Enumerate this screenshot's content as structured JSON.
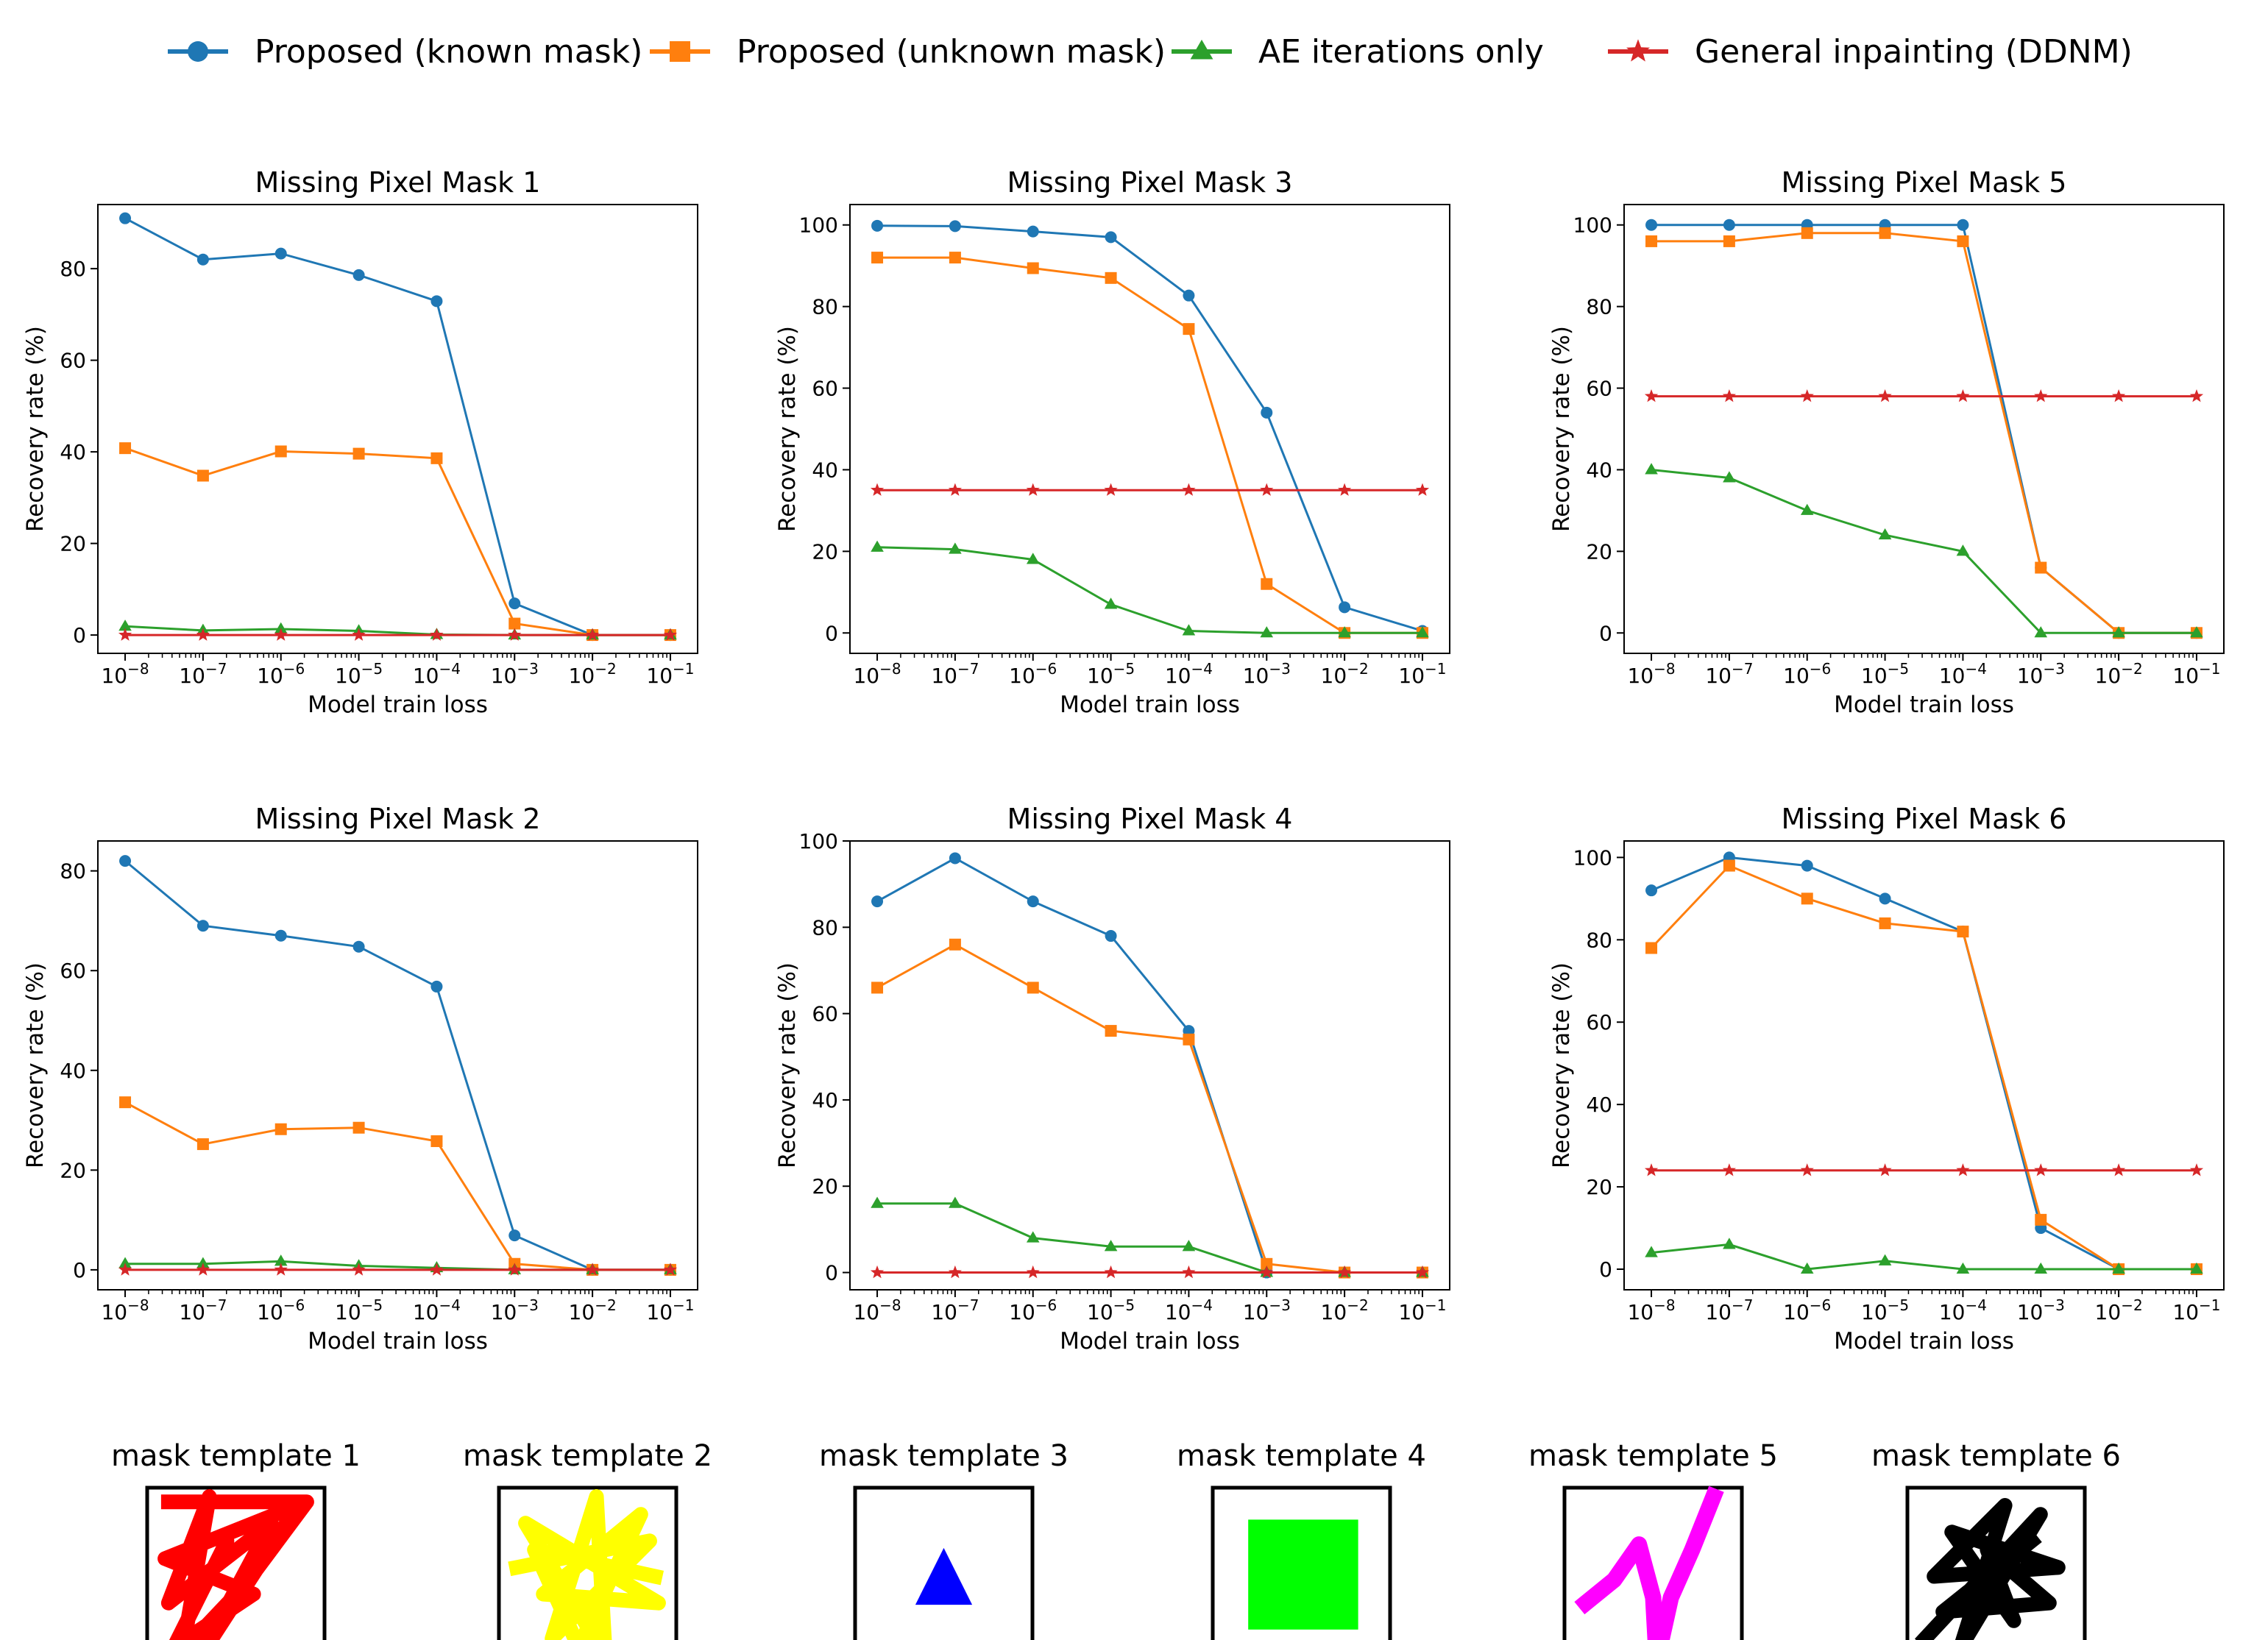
{
  "legend": {
    "placement": "top-center",
    "items": [
      {
        "label": "Proposed (known mask)",
        "color": "#1f77b4",
        "marker": "circle"
      },
      {
        "label": "Proposed (unknown mask)",
        "color": "#ff7f0e",
        "marker": "square"
      },
      {
        "label": "AE iterations only",
        "color": "#2ca02c",
        "marker": "triangle"
      },
      {
        "label": "General inpainting (DDNM)",
        "color": "#d62728",
        "marker": "star"
      }
    ]
  },
  "chart_data": [
    {
      "type": "line",
      "title": "Missing Pixel Mask 1",
      "xlabel": "Model train loss",
      "ylabel": "Recovery rate (%)",
      "x": [
        1e-08,
        1e-07,
        1e-06,
        1e-05,
        0.0001,
        0.001,
        0.01,
        0.1
      ],
      "xscale": "log",
      "ylim": [
        -4,
        94
      ],
      "yticks": [
        0,
        20,
        40,
        60,
        80
      ],
      "series": [
        {
          "name": "Proposed (known mask)",
          "values": [
            91,
            82,
            83.3,
            78.6,
            72.9,
            6.9,
            0,
            0
          ]
        },
        {
          "name": "Proposed (unknown mask)",
          "values": [
            40.8,
            34.8,
            40.1,
            39.6,
            38.6,
            2.5,
            0,
            0
          ]
        },
        {
          "name": "AE iterations only",
          "values": [
            1.9,
            1,
            1.3,
            0.9,
            0.1,
            0,
            0,
            0
          ]
        },
        {
          "name": "General inpainting (DDNM)",
          "values": [
            0,
            0,
            0,
            0,
            0,
            0,
            0,
            0
          ]
        }
      ]
    },
    {
      "type": "line",
      "title": "Missing Pixel Mask 3",
      "xlabel": "Model train loss",
      "ylabel": "Recovery rate (%)",
      "x": [
        1e-08,
        1e-07,
        1e-06,
        1e-05,
        0.0001,
        0.001,
        0.01,
        0.1
      ],
      "xscale": "log",
      "ylim": [
        -5,
        105
      ],
      "yticks": [
        0,
        20,
        40,
        60,
        80,
        100
      ],
      "series": [
        {
          "name": "Proposed (known mask)",
          "values": [
            99.8,
            99.7,
            98.4,
            97,
            82.7,
            54,
            6.3,
            0.5
          ]
        },
        {
          "name": "Proposed (unknown mask)",
          "values": [
            92,
            92,
            89.4,
            87,
            74.5,
            12,
            0,
            0
          ]
        },
        {
          "name": "AE iterations only",
          "values": [
            21,
            20.5,
            18,
            7,
            0.5,
            0,
            0,
            0
          ]
        },
        {
          "name": "General inpainting (DDNM)",
          "values": [
            35,
            35,
            35,
            35,
            35,
            35,
            35,
            35
          ]
        }
      ]
    },
    {
      "type": "line",
      "title": "Missing Pixel Mask 5",
      "xlabel": "Model train loss",
      "ylabel": "Recovery rate (%)",
      "x": [
        1e-08,
        1e-07,
        1e-06,
        1e-05,
        0.0001,
        0.001,
        0.01,
        0.1
      ],
      "xscale": "log",
      "ylim": [
        -5,
        105
      ],
      "yticks": [
        0,
        20,
        40,
        60,
        80,
        100
      ],
      "series": [
        {
          "name": "Proposed (known mask)",
          "values": [
            100,
            100,
            100,
            100,
            100,
            16,
            0,
            0
          ]
        },
        {
          "name": "Proposed (unknown mask)",
          "values": [
            96,
            96,
            98,
            98,
            96,
            16,
            0,
            0
          ]
        },
        {
          "name": "AE iterations only",
          "values": [
            40,
            38,
            30,
            24,
            20,
            0,
            0,
            0
          ]
        },
        {
          "name": "General inpainting (DDNM)",
          "values": [
            58,
            58,
            58,
            58,
            58,
            58,
            58,
            58
          ]
        }
      ]
    },
    {
      "type": "line",
      "title": "Missing Pixel Mask 2",
      "xlabel": "Model train loss",
      "ylabel": "Recovery rate (%)",
      "x": [
        1e-08,
        1e-07,
        1e-06,
        1e-05,
        0.0001,
        0.001,
        0.01,
        0.1
      ],
      "xscale": "log",
      "ylim": [
        -4,
        86
      ],
      "yticks": [
        0,
        20,
        40,
        60,
        80
      ],
      "series": [
        {
          "name": "Proposed (known mask)",
          "values": [
            82,
            69,
            67,
            64.8,
            56.8,
            6.9,
            0,
            0
          ]
        },
        {
          "name": "Proposed (unknown mask)",
          "values": [
            33.6,
            25.2,
            28.2,
            28.5,
            25.8,
            1.2,
            0,
            0
          ]
        },
        {
          "name": "AE iterations only",
          "values": [
            1.2,
            1.2,
            1.7,
            0.8,
            0.4,
            0,
            0,
            0
          ]
        },
        {
          "name": "General inpainting (DDNM)",
          "values": [
            0,
            0,
            0,
            0,
            0,
            0,
            0,
            0
          ]
        }
      ]
    },
    {
      "type": "line",
      "title": "Missing Pixel Mask 4",
      "xlabel": "Model train loss",
      "ylabel": "Recovery rate (%)",
      "x": [
        1e-08,
        1e-07,
        1e-06,
        1e-05,
        0.0001,
        0.001,
        0.01,
        0.1
      ],
      "xscale": "log",
      "ylim": [
        -4,
        100
      ],
      "yticks": [
        0,
        20,
        40,
        60,
        80,
        100
      ],
      "series": [
        {
          "name": "Proposed (known mask)",
          "values": [
            86,
            96,
            86,
            78,
            56,
            0,
            0,
            0
          ]
        },
        {
          "name": "Proposed (unknown mask)",
          "values": [
            66,
            76,
            66,
            56,
            54,
            2,
            0,
            0
          ]
        },
        {
          "name": "AE iterations only",
          "values": [
            16,
            16,
            8,
            6,
            6,
            0,
            0,
            0
          ]
        },
        {
          "name": "General inpainting (DDNM)",
          "values": [
            0,
            0,
            0,
            0,
            0,
            0,
            0,
            0
          ]
        }
      ]
    },
    {
      "type": "line",
      "title": "Missing Pixel Mask 6",
      "xlabel": "Model train loss",
      "ylabel": "Recovery rate (%)",
      "x": [
        1e-08,
        1e-07,
        1e-06,
        1e-05,
        0.0001,
        0.001,
        0.01,
        0.1
      ],
      "xscale": "log",
      "ylim": [
        -5,
        104
      ],
      "yticks": [
        0,
        20,
        40,
        60,
        80,
        100
      ],
      "series": [
        {
          "name": "Proposed (known mask)",
          "values": [
            92,
            100,
            98,
            90,
            82,
            10,
            0,
            0
          ]
        },
        {
          "name": "Proposed (unknown mask)",
          "values": [
            78,
            98,
            90,
            84,
            82,
            12,
            0,
            0
          ]
        },
        {
          "name": "AE iterations only",
          "values": [
            4,
            6,
            0,
            2,
            0,
            0,
            0,
            0
          ]
        },
        {
          "name": "General inpainting (DDNM)",
          "values": [
            24,
            24,
            24,
            24,
            24,
            24,
            24,
            24
          ]
        }
      ]
    }
  ],
  "templates": [
    {
      "label": "mask template 1",
      "color": "#ff0000",
      "shape": "scribble"
    },
    {
      "label": "mask template 2",
      "color": "#ffff00",
      "shape": "star-scribble"
    },
    {
      "label": "mask template 3",
      "color": "#0000ff",
      "shape": "triangle"
    },
    {
      "label": "mask template 4",
      "color": "#00ff00",
      "shape": "square"
    },
    {
      "label": "mask template 5",
      "color": "#ff00ff",
      "shape": "zigzag"
    },
    {
      "label": "mask template 6",
      "color": "#000000",
      "shape": "scribble"
    }
  ]
}
